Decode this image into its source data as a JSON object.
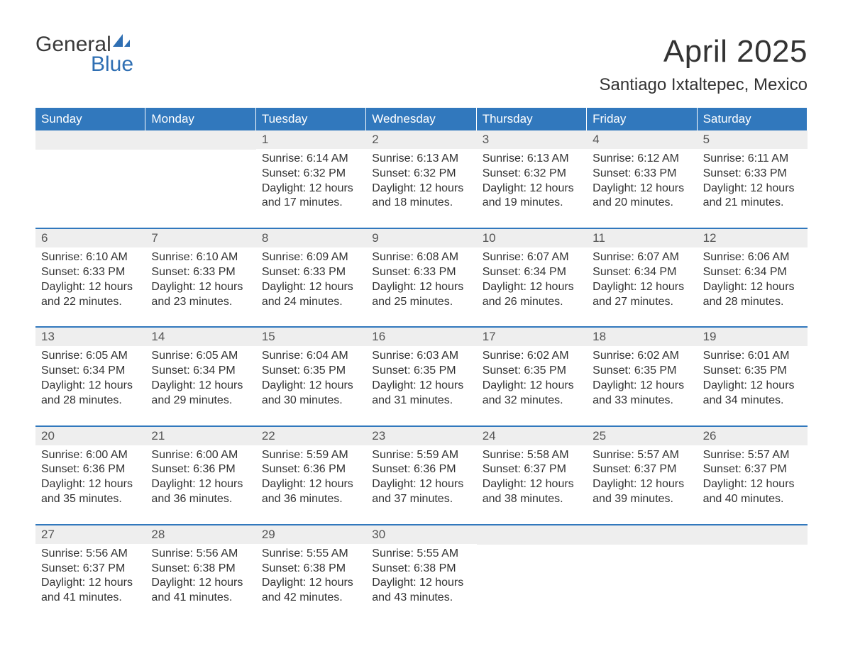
{
  "logo": {
    "word1": "General",
    "word2": "Blue"
  },
  "title": "April 2025",
  "subtitle": "Santiago Ixtaltepec, Mexico",
  "colors": {
    "header_bg": "#3178bd",
    "header_text": "#ffffff",
    "daynum_bg": "#eeeeee",
    "body_text": "#333333",
    "logo_blue": "#2f6fb3"
  },
  "weekdays": [
    "Sunday",
    "Monday",
    "Tuesday",
    "Wednesday",
    "Thursday",
    "Friday",
    "Saturday"
  ],
  "weeks": [
    [
      null,
      null,
      {
        "n": "1",
        "sr": "6:14 AM",
        "ss": "6:32 PM",
        "dl": "12 hours and 17 minutes."
      },
      {
        "n": "2",
        "sr": "6:13 AM",
        "ss": "6:32 PM",
        "dl": "12 hours and 18 minutes."
      },
      {
        "n": "3",
        "sr": "6:13 AM",
        "ss": "6:32 PM",
        "dl": "12 hours and 19 minutes."
      },
      {
        "n": "4",
        "sr": "6:12 AM",
        "ss": "6:33 PM",
        "dl": "12 hours and 20 minutes."
      },
      {
        "n": "5",
        "sr": "6:11 AM",
        "ss": "6:33 PM",
        "dl": "12 hours and 21 minutes."
      }
    ],
    [
      {
        "n": "6",
        "sr": "6:10 AM",
        "ss": "6:33 PM",
        "dl": "12 hours and 22 minutes."
      },
      {
        "n": "7",
        "sr": "6:10 AM",
        "ss": "6:33 PM",
        "dl": "12 hours and 23 minutes."
      },
      {
        "n": "8",
        "sr": "6:09 AM",
        "ss": "6:33 PM",
        "dl": "12 hours and 24 minutes."
      },
      {
        "n": "9",
        "sr": "6:08 AM",
        "ss": "6:33 PM",
        "dl": "12 hours and 25 minutes."
      },
      {
        "n": "10",
        "sr": "6:07 AM",
        "ss": "6:34 PM",
        "dl": "12 hours and 26 minutes."
      },
      {
        "n": "11",
        "sr": "6:07 AM",
        "ss": "6:34 PM",
        "dl": "12 hours and 27 minutes."
      },
      {
        "n": "12",
        "sr": "6:06 AM",
        "ss": "6:34 PM",
        "dl": "12 hours and 28 minutes."
      }
    ],
    [
      {
        "n": "13",
        "sr": "6:05 AM",
        "ss": "6:34 PM",
        "dl": "12 hours and 28 minutes."
      },
      {
        "n": "14",
        "sr": "6:05 AM",
        "ss": "6:34 PM",
        "dl": "12 hours and 29 minutes."
      },
      {
        "n": "15",
        "sr": "6:04 AM",
        "ss": "6:35 PM",
        "dl": "12 hours and 30 minutes."
      },
      {
        "n": "16",
        "sr": "6:03 AM",
        "ss": "6:35 PM",
        "dl": "12 hours and 31 minutes."
      },
      {
        "n": "17",
        "sr": "6:02 AM",
        "ss": "6:35 PM",
        "dl": "12 hours and 32 minutes."
      },
      {
        "n": "18",
        "sr": "6:02 AM",
        "ss": "6:35 PM",
        "dl": "12 hours and 33 minutes."
      },
      {
        "n": "19",
        "sr": "6:01 AM",
        "ss": "6:35 PM",
        "dl": "12 hours and 34 minutes."
      }
    ],
    [
      {
        "n": "20",
        "sr": "6:00 AM",
        "ss": "6:36 PM",
        "dl": "12 hours and 35 minutes."
      },
      {
        "n": "21",
        "sr": "6:00 AM",
        "ss": "6:36 PM",
        "dl": "12 hours and 36 minutes."
      },
      {
        "n": "22",
        "sr": "5:59 AM",
        "ss": "6:36 PM",
        "dl": "12 hours and 36 minutes."
      },
      {
        "n": "23",
        "sr": "5:59 AM",
        "ss": "6:36 PM",
        "dl": "12 hours and 37 minutes."
      },
      {
        "n": "24",
        "sr": "5:58 AM",
        "ss": "6:37 PM",
        "dl": "12 hours and 38 minutes."
      },
      {
        "n": "25",
        "sr": "5:57 AM",
        "ss": "6:37 PM",
        "dl": "12 hours and 39 minutes."
      },
      {
        "n": "26",
        "sr": "5:57 AM",
        "ss": "6:37 PM",
        "dl": "12 hours and 40 minutes."
      }
    ],
    [
      {
        "n": "27",
        "sr": "5:56 AM",
        "ss": "6:37 PM",
        "dl": "12 hours and 41 minutes."
      },
      {
        "n": "28",
        "sr": "5:56 AM",
        "ss": "6:38 PM",
        "dl": "12 hours and 41 minutes."
      },
      {
        "n": "29",
        "sr": "5:55 AM",
        "ss": "6:38 PM",
        "dl": "12 hours and 42 minutes."
      },
      {
        "n": "30",
        "sr": "5:55 AM",
        "ss": "6:38 PM",
        "dl": "12 hours and 43 minutes."
      },
      null,
      null,
      null
    ]
  ],
  "labels": {
    "sunrise": "Sunrise: ",
    "sunset": "Sunset: ",
    "daylight": "Daylight: "
  }
}
